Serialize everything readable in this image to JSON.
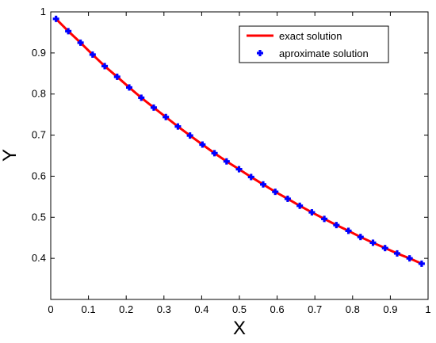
{
  "chart_data": {
    "type": "line",
    "title": "",
    "xlabel": "X",
    "ylabel": "Y",
    "xlim": [
      0,
      1
    ],
    "ylim": [
      0.3,
      1
    ],
    "x_ticks": [
      "0",
      "0.1",
      "0.2",
      "0.3",
      "0.4",
      "0.5",
      "0.6",
      "0.7",
      "0.8",
      "0.9",
      "1"
    ],
    "y_ticks": [
      "0.4",
      "0.5",
      "0.6",
      "0.7",
      "0.8",
      "0.9",
      "1"
    ],
    "grid": false,
    "legend_position": "top-right",
    "series": [
      {
        "name": "exact solution",
        "style": "line",
        "color": "#ff0000",
        "x": [
          0.014,
          0.0465,
          0.079,
          0.111,
          0.143,
          0.176,
          0.208,
          0.24,
          0.273,
          0.305,
          0.337,
          0.369,
          0.402,
          0.434,
          0.466,
          0.499,
          0.531,
          0.563,
          0.595,
          0.628,
          0.66,
          0.692,
          0.725,
          0.757,
          0.789,
          0.821,
          0.854,
          0.886,
          0.918,
          0.951,
          0.983
        ],
        "y": [
          0.983,
          0.953,
          0.925,
          0.896,
          0.868,
          0.842,
          0.816,
          0.791,
          0.767,
          0.744,
          0.721,
          0.699,
          0.677,
          0.656,
          0.636,
          0.617,
          0.598,
          0.58,
          0.562,
          0.545,
          0.528,
          0.512,
          0.496,
          0.481,
          0.467,
          0.452,
          0.438,
          0.425,
          0.412,
          0.4,
          0.387
        ]
      },
      {
        "name": "aproximate solution",
        "style": "markers",
        "color": "#0000ff",
        "x": [
          0.014,
          0.0465,
          0.079,
          0.111,
          0.143,
          0.176,
          0.208,
          0.24,
          0.273,
          0.305,
          0.337,
          0.369,
          0.402,
          0.434,
          0.466,
          0.499,
          0.531,
          0.563,
          0.595,
          0.628,
          0.66,
          0.692,
          0.725,
          0.757,
          0.789,
          0.821,
          0.854,
          0.886,
          0.918,
          0.951,
          0.983
        ],
        "y": [
          0.983,
          0.953,
          0.925,
          0.896,
          0.868,
          0.842,
          0.816,
          0.791,
          0.767,
          0.744,
          0.721,
          0.699,
          0.677,
          0.656,
          0.636,
          0.617,
          0.598,
          0.58,
          0.562,
          0.545,
          0.528,
          0.512,
          0.496,
          0.481,
          0.467,
          0.452,
          0.438,
          0.425,
          0.412,
          0.4,
          0.387
        ]
      }
    ]
  }
}
